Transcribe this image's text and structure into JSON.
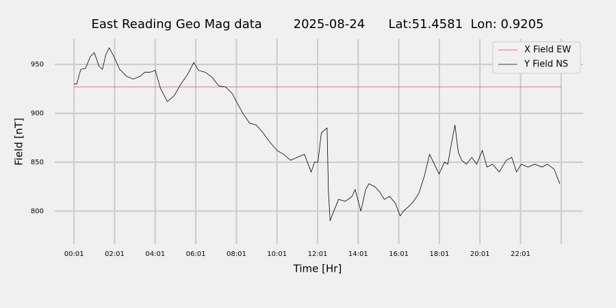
{
  "chart_data": {
    "type": "line",
    "title": "East Reading Geo Mag data        2025-08-24      Lat:51.4581  Lon: 0.9205",
    "x_label": "Time  [Hr]",
    "y_label": "Field  [nT]",
    "xlim": [
      -56,
      1506
    ],
    "ylim": [
      766,
      976
    ],
    "xticks": [
      {
        "value": 1,
        "label": "00:01"
      },
      {
        "value": 121,
        "label": "02:01"
      },
      {
        "value": 241,
        "label": "04:01"
      },
      {
        "value": 361,
        "label": "06:01"
      },
      {
        "value": 481,
        "label": "08:01"
      },
      {
        "value": 601,
        "label": "10:01"
      },
      {
        "value": 721,
        "label": "12:01"
      },
      {
        "value": 841,
        "label": "14:01"
      },
      {
        "value": 961,
        "label": "16:01"
      },
      {
        "value": 1081,
        "label": "18:01"
      },
      {
        "value": 1201,
        "label": "20:01"
      },
      {
        "value": 1321,
        "label": "22:01"
      },
      {
        "value": 1441,
        "label": null
      }
    ],
    "yticks": [
      800,
      850,
      900,
      950
    ],
    "grid": true,
    "legend": "upper right",
    "series": [
      {
        "name": "X Field EW",
        "color": "#e8474a",
        "x": [
          1,
          1441
        ],
        "values": [
          927,
          927
        ]
      },
      {
        "name": "Y Field NS",
        "color": "#000000",
        "x": [
          1,
          9,
          21,
          35,
          49,
          61,
          75,
          85,
          95,
          105,
          119,
          136,
          156,
          176,
          197,
          210,
          225,
          241,
          257,
          277,
          297,
          317,
          337,
          355,
          369,
          389,
          409,
          429,
          449,
          469,
          481,
          500,
          520,
          540,
          560,
          581,
          601,
          621,
          641,
          661,
          682,
          702,
          712,
          722,
          732,
          749,
          753,
          758,
          769,
          783,
          803,
          823,
          832,
          849,
          863,
          873,
          890,
          904,
          918,
          934,
          951,
          965,
          975,
          991,
          1005,
          1020,
          1036,
          1052,
          1066,
          1080,
          1096,
          1106,
          1117,
          1127,
          1137,
          1147,
          1161,
          1177,
          1191,
          1208,
          1222,
          1238,
          1258,
          1279,
          1295,
          1309,
          1323,
          1343,
          1363,
          1384,
          1400,
          1420,
          1437
        ],
        "values": [
          930,
          930,
          945,
          946,
          958,
          962,
          948,
          945,
          960,
          967,
          958,
          945,
          938,
          935,
          938,
          942,
          942,
          944,
          925,
          912,
          918,
          930,
          940,
          952,
          944,
          942,
          937,
          928,
          927,
          920,
          912,
          900,
          890,
          888,
          880,
          870,
          862,
          858,
          852,
          855,
          858,
          840,
          850,
          850,
          880,
          885,
          820,
          790,
          800,
          812,
          810,
          815,
          822,
          800,
          822,
          828,
          825,
          820,
          812,
          815,
          808,
          795,
          800,
          805,
          810,
          818,
          835,
          858,
          848,
          838,
          850,
          848,
          870,
          888,
          860,
          852,
          848,
          855,
          848,
          862,
          845,
          848,
          840,
          852,
          855,
          840,
          848,
          845,
          848,
          845,
          848,
          843,
          828
        ]
      }
    ]
  }
}
